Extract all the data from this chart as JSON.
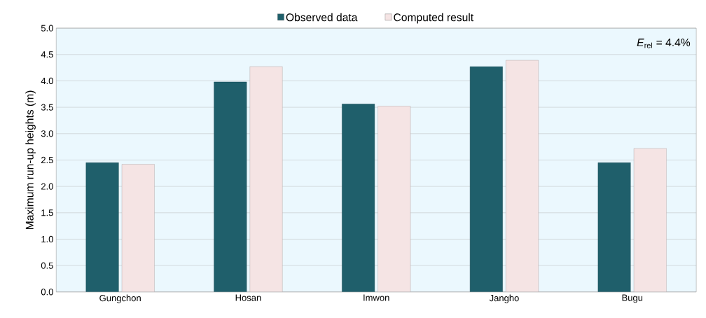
{
  "chart_data": {
    "type": "bar",
    "ylabel": "Maximum run-up heights (m)",
    "categories": [
      "Gungchon",
      "Hosan",
      "Imwon",
      "Jangho",
      "Bugu"
    ],
    "series": [
      {
        "name": "Observed data",
        "color": "#1f5f6b",
        "values": [
          2.45,
          3.98,
          3.56,
          4.27,
          2.45
        ]
      },
      {
        "name": "Computed result",
        "color": "#f5e4e4",
        "values": [
          2.42,
          4.27,
          3.52,
          4.39,
          2.72
        ]
      }
    ],
    "ylim": [
      0,
      5
    ],
    "yticks": [
      {
        "value": 0,
        "label": "0.0"
      },
      0.5,
      {
        "value": 1,
        "label": "1.0"
      },
      1.5,
      {
        "value": 2,
        "label": "2.0"
      },
      2.5,
      {
        "value": 3,
        "label": "3.0"
      },
      3.5,
      {
        "value": 4,
        "label": "4.0"
      },
      4.5,
      {
        "value": 5,
        "label": "5.0"
      }
    ],
    "grid": "y",
    "legend": "top",
    "annotations": [
      "*E*$_{rel}$ = 4.4%"
    ]
  }
}
